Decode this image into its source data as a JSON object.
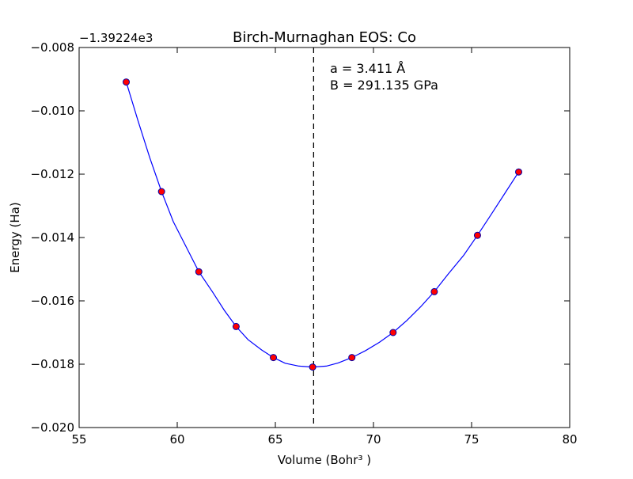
{
  "chart_data": {
    "type": "line",
    "title": "Birch-Murnaghan EOS: Co",
    "xlabel": "Volume (Bohr³ )",
    "ylabel": "Energy (Ha)",
    "y_offset_label": "−1.39224e3",
    "xlim": [
      55,
      80
    ],
    "ylim": [
      -0.02,
      -0.008
    ],
    "x_ticks": [
      55,
      60,
      65,
      70,
      75,
      80
    ],
    "x_tick_labels": [
      "55",
      "60",
      "65",
      "70",
      "75",
      "80"
    ],
    "y_ticks": [
      -0.02,
      -0.018,
      -0.016,
      -0.014,
      -0.012,
      -0.01,
      -0.008
    ],
    "y_tick_labels": [
      "−0.020",
      "−0.018",
      "−0.016",
      "−0.014",
      "−0.012",
      "−0.010",
      "−0.008"
    ],
    "grid": false,
    "equilibrium_volume": 66.95,
    "annotation_lines": [
      "a = 3.411 Å",
      "B = 291.135 GPa"
    ],
    "series": [
      {
        "kind": "scatter",
        "marker_color": "#ff0000",
        "edge_color": "#0000aa",
        "x": [
          57.4,
          59.2,
          61.1,
          63.0,
          64.9,
          66.9,
          68.9,
          71.0,
          73.1,
          75.3,
          77.4
        ],
        "y": [
          -0.00909,
          -0.01255,
          -0.01508,
          -0.01681,
          -0.01779,
          -0.01809,
          -0.01779,
          -0.017,
          -0.01571,
          -0.01393,
          -0.01193
        ]
      },
      {
        "kind": "fit",
        "color": "#0000ff",
        "x": [
          57.4,
          58.0,
          58.6,
          59.2,
          59.8,
          60.5,
          61.1,
          61.8,
          62.4,
          63.0,
          63.6,
          64.3,
          64.9,
          65.5,
          66.2,
          66.9,
          67.6,
          68.2,
          68.9,
          69.6,
          70.3,
          71.0,
          71.7,
          72.4,
          73.1,
          73.8,
          74.6,
          75.3,
          76.0,
          76.7,
          77.4
        ],
        "y": [
          -0.00909,
          -0.01031,
          -0.01148,
          -0.01255,
          -0.0135,
          -0.01435,
          -0.01508,
          -0.01572,
          -0.0163,
          -0.01681,
          -0.01722,
          -0.01755,
          -0.01779,
          -0.01797,
          -0.01806,
          -0.01809,
          -0.01806,
          -0.01796,
          -0.01779,
          -0.01757,
          -0.01731,
          -0.017,
          -0.01662,
          -0.01619,
          -0.01571,
          -0.01516,
          -0.01456,
          -0.01393,
          -0.01327,
          -0.0126,
          -0.01193
        ]
      }
    ]
  }
}
